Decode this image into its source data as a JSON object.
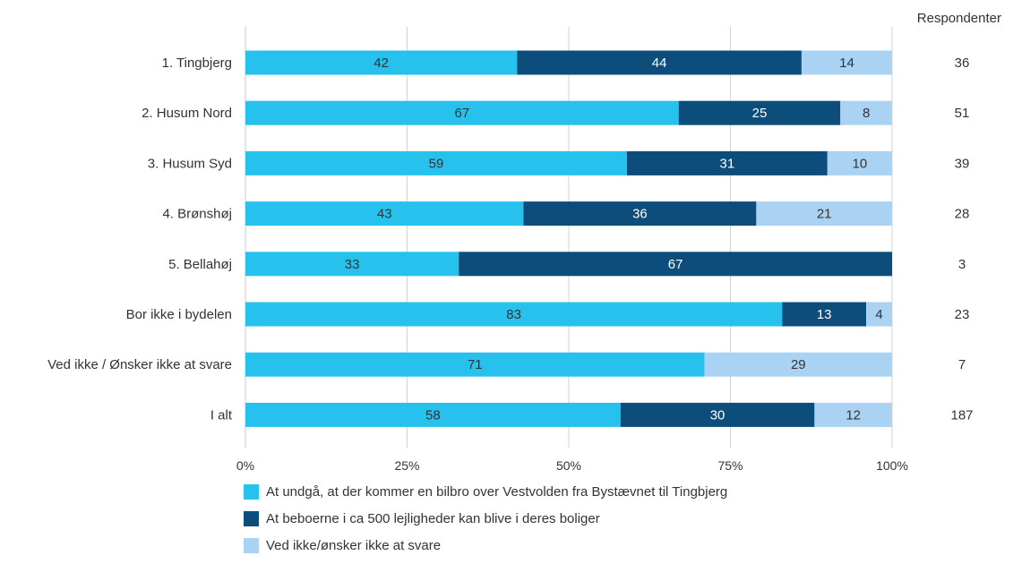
{
  "chart_data": {
    "type": "bar",
    "orientation": "horizontal",
    "stacked": true,
    "percent_scale": true,
    "categories": [
      "1. Tingbjerg",
      "2. Husum Nord",
      "3. Husum Syd",
      "4. Brønshøj",
      "5. Bellahøj",
      "Bor ikke i bydelen",
      "Ved ikke / Ønsker ikke at svare",
      "I alt"
    ],
    "series": [
      {
        "name": "At undgå, at der kommer en bilbro over Vestvolden fra Bystævnet til Tingbjerg",
        "color": "#27c1ee",
        "label_color": "#333333",
        "values": [
          42,
          67,
          59,
          43,
          33,
          83,
          71,
          58
        ]
      },
      {
        "name": "At beboerne i ca 500 lejligheder kan blive i deres boliger",
        "color": "#0d4d7b",
        "label_color": "#ffffff",
        "values": [
          44,
          25,
          31,
          36,
          67,
          13,
          0,
          30
        ]
      },
      {
        "name": "Ved ikke/ønsker ikke at svare",
        "color": "#a9d2f3",
        "label_color": "#333333",
        "values": [
          14,
          8,
          10,
          21,
          0,
          4,
          29,
          12
        ]
      }
    ],
    "xlim": [
      0,
      100
    ],
    "xticks": [
      "0%",
      "25%",
      "50%",
      "75%",
      "100%"
    ],
    "grid": true,
    "legend_position": "bottom",
    "respondents_header": "Respondenter",
    "respondents": [
      "36",
      "51",
      "39",
      "28",
      "3",
      "23",
      "7",
      "187"
    ]
  }
}
